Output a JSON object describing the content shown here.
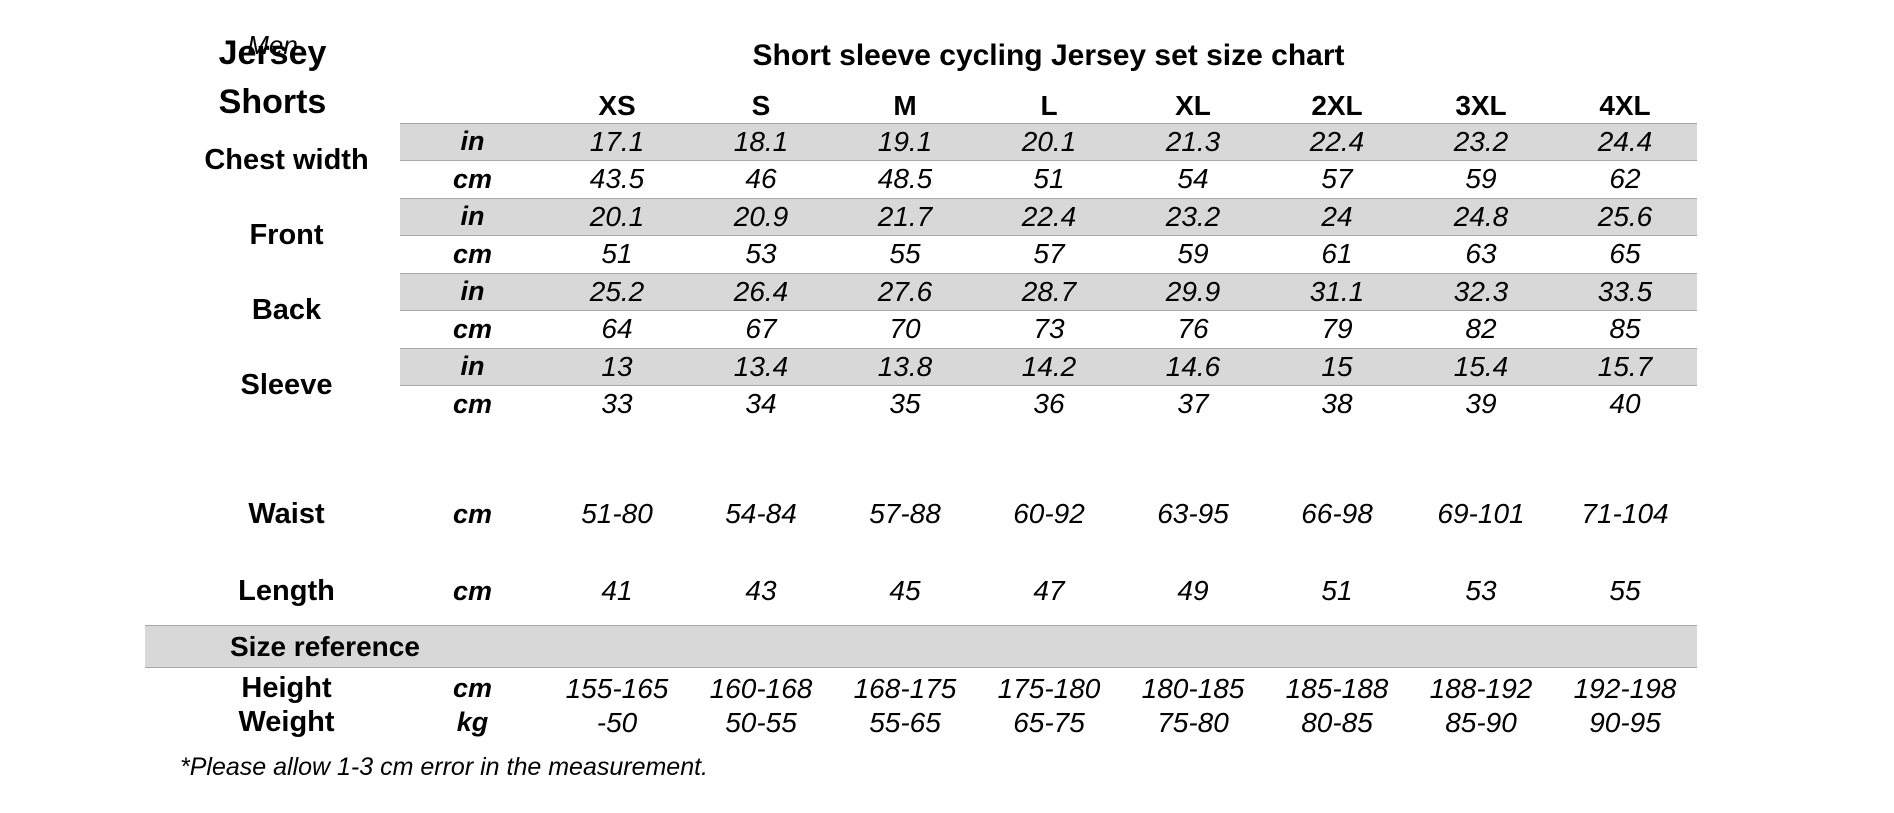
{
  "page": {
    "background": "#ffffff",
    "band_color": "#d8d8d8",
    "band_edge_color": "#a9a9a9",
    "text_color": "#000000"
  },
  "header": {
    "gender_label": "Men",
    "title": "Short sleeve cycling Jersey set size chart"
  },
  "table": {
    "sizes": [
      "XS",
      "S",
      "M",
      "L",
      "XL",
      "2XL",
      "3XL",
      "4XL"
    ],
    "units": {
      "in": "in",
      "cm": "cm",
      "kg": "kg"
    },
    "jersey": {
      "section_label": "Jersey",
      "groups": [
        {
          "name": "Chest width",
          "in": [
            "17.1",
            "18.1",
            "19.1",
            "20.1",
            "21.3",
            "22.4",
            "23.2",
            "24.4"
          ],
          "cm": [
            "43.5",
            "46",
            "48.5",
            "51",
            "54",
            "57",
            "59",
            "62"
          ]
        },
        {
          "name": "Front",
          "in": [
            "20.1",
            "20.9",
            "21.7",
            "22.4",
            "23.2",
            "24",
            "24.8",
            "25.6"
          ],
          "cm": [
            "51",
            "53",
            "55",
            "57",
            "59",
            "61",
            "63",
            "65"
          ]
        },
        {
          "name": "Back",
          "in": [
            "25.2",
            "26.4",
            "27.6",
            "28.7",
            "29.9",
            "31.1",
            "32.3",
            "33.5"
          ],
          "cm": [
            "64",
            "67",
            "70",
            "73",
            "76",
            "79",
            "82",
            "85"
          ]
        },
        {
          "name": "Sleeve",
          "in": [
            "13",
            "13.4",
            "13.8",
            "14.2",
            "14.6",
            "15",
            "15.4",
            "15.7"
          ],
          "cm": [
            "33",
            "34",
            "35",
            "36",
            "37",
            "38",
            "39",
            "40"
          ]
        }
      ]
    },
    "shorts": {
      "section_label": "Shorts",
      "rows": [
        {
          "name": "Waist",
          "unit": "cm",
          "values": [
            "51-80",
            "54-84",
            "57-88",
            "60-92",
            "63-95",
            "66-98",
            "69-101",
            "71-104"
          ]
        },
        {
          "name": "Length",
          "unit": "cm",
          "values": [
            "41",
            "43",
            "45",
            "47",
            "49",
            "51",
            "53",
            "55"
          ]
        }
      ]
    },
    "size_reference": {
      "section_label": "Size reference",
      "rows": [
        {
          "name": "Height",
          "unit": "cm",
          "values": [
            "155-165",
            "160-168",
            "168-175",
            "175-180",
            "180-185",
            "185-188",
            "188-192",
            "192-198"
          ]
        },
        {
          "name": "Weight",
          "unit": "kg",
          "values": [
            "-50",
            "50-55",
            "55-65",
            "65-75",
            "75-80",
            "80-85",
            "85-90",
            "90-95"
          ]
        }
      ]
    }
  },
  "footnote": "*Please allow 1-3 cm error in the measurement."
}
